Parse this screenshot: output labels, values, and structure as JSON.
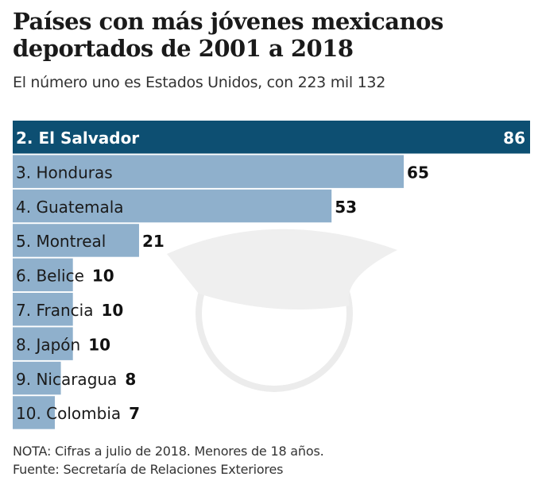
{
  "title": "Países con más jóvenes mexicanos deportados  de 2001 a 2018",
  "subtitle": "El número uno es Estados Unidos, con 223 mil 132",
  "note": "NOTA: Cifras a julio de 2018. Menores de 18 años.",
  "source": "Fuente: Secretaría de Relaciones Exteriores",
  "colors": {
    "highlight": "#0d4f72",
    "bar": "#8fb0cc",
    "watermark": "#e6e6e6"
  },
  "chart_data": {
    "type": "bar",
    "orientation": "horizontal",
    "categories": [
      "2. El Salvador",
      "3. Honduras",
      "4. Guatemala",
      "5. Montreal",
      "6. Belice",
      "7. Francia",
      "8. Japón",
      "9. Nicaragua",
      "10. Colombia"
    ],
    "values": [
      86,
      65,
      53,
      21,
      10,
      10,
      10,
      8,
      7
    ],
    "data_labels": [
      "86",
      "65",
      "53",
      "21",
      "10",
      "10",
      "10",
      "8",
      "7"
    ],
    "highlighted": "2. El Salvador",
    "xlim": [
      0,
      86
    ],
    "grid": false
  }
}
